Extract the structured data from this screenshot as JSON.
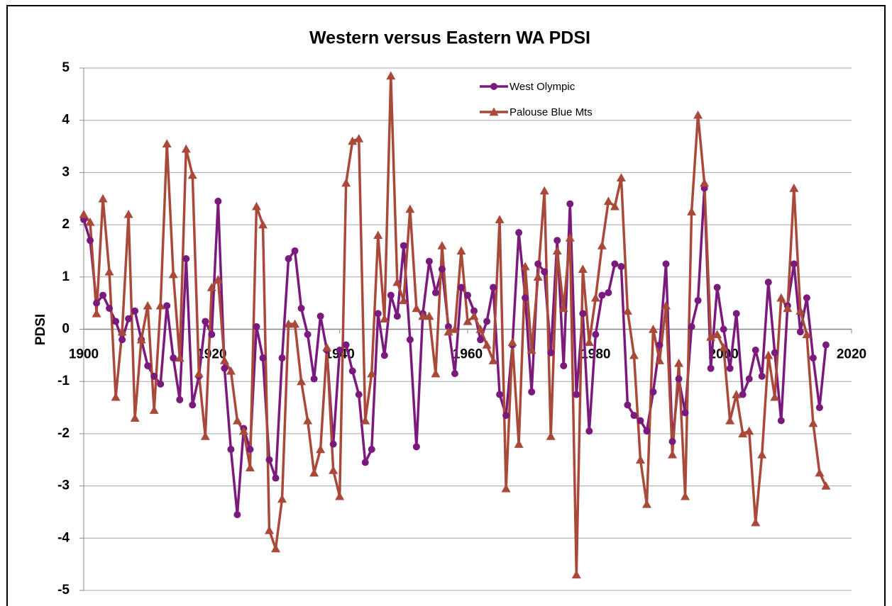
{
  "chart_data": {
    "type": "line",
    "title": "Western versus Eastern WA PDSI",
    "y_label": "PDSI",
    "x": [
      1900,
      1901,
      1902,
      1903,
      1904,
      1905,
      1906,
      1907,
      1908,
      1909,
      1910,
      1911,
      1912,
      1913,
      1914,
      1915,
      1916,
      1917,
      1918,
      1919,
      1920,
      1921,
      1922,
      1923,
      1924,
      1925,
      1926,
      1927,
      1928,
      1929,
      1930,
      1931,
      1932,
      1933,
      1934,
      1935,
      1936,
      1937,
      1938,
      1939,
      1940,
      1941,
      1942,
      1943,
      1944,
      1945,
      1946,
      1947,
      1948,
      1949,
      1950,
      1951,
      1952,
      1953,
      1954,
      1955,
      1956,
      1957,
      1958,
      1959,
      1960,
      1961,
      1962,
      1963,
      1964,
      1965,
      1966,
      1967,
      1968,
      1969,
      1970,
      1971,
      1972,
      1973,
      1974,
      1975,
      1976,
      1977,
      1978,
      1979,
      1980,
      1981,
      1982,
      1983,
      1984,
      1985,
      1986,
      1987,
      1988,
      1989,
      1990,
      1991,
      1992,
      1993,
      1994,
      1995,
      1996,
      1997,
      1998,
      1999,
      2000,
      2001,
      2002,
      2003,
      2004,
      2005,
      2006,
      2007,
      2008,
      2009,
      2010,
      2011,
      2012,
      2013,
      2014,
      2015,
      2016
    ],
    "series": [
      {
        "name": "West Olympic",
        "color": "#7b1a7d",
        "marker": "circle",
        "values": [
          2.1,
          1.7,
          0.5,
          0.65,
          0.4,
          0.15,
          -0.2,
          0.2,
          0.35,
          -0.2,
          -0.7,
          -0.9,
          -1.05,
          0.45,
          -0.55,
          -1.35,
          1.35,
          -1.45,
          -0.9,
          0.15,
          -0.1,
          2.45,
          -0.75,
          -2.3,
          -3.55,
          -1.9,
          -2.3,
          0.05,
          -0.55,
          -2.5,
          -2.85,
          -0.55,
          1.35,
          1.5,
          0.4,
          -0.1,
          -0.95,
          0.25,
          -0.4,
          -2.2,
          -0.4,
          -0.3,
          -0.8,
          -1.25,
          -2.55,
          -2.3,
          0.3,
          -0.5,
          0.65,
          0.25,
          1.6,
          -0.2,
          -2.25,
          0.3,
          1.3,
          0.7,
          1.15,
          0.05,
          -0.85,
          0.8,
          0.65,
          0.35,
          -0.2,
          0.15,
          0.8,
          -1.25,
          -1.65,
          -0.3,
          1.85,
          0.6,
          -1.2,
          1.25,
          1.1,
          -0.45,
          1.7,
          -0.7,
          2.4,
          -1.25,
          0.3,
          -1.95,
          -0.1,
          0.65,
          0.7,
          1.25,
          1.2,
          -1.45,
          -1.65,
          -1.75,
          -1.95,
          -1.2,
          -0.3,
          1.25,
          -2.15,
          -0.95,
          -1.6,
          0.05,
          0.55,
          2.7,
          -0.75,
          0.8,
          0.0,
          -0.75,
          0.3,
          -1.25,
          -0.95,
          -0.4,
          -0.9,
          0.9,
          -0.45,
          -1.75,
          0.45,
          1.25,
          -0.05,
          0.6,
          -0.55,
          -1.5,
          -0.3
        ]
      },
      {
        "name": "Palouse Blue Mts",
        "color": "#a9493a",
        "marker": "triangle",
        "values": [
          2.2,
          2.05,
          0.3,
          2.5,
          1.1,
          -1.3,
          -0.05,
          2.2,
          -1.7,
          -0.2,
          0.45,
          -1.55,
          0.45,
          3.55,
          1.05,
          -0.55,
          3.45,
          2.95,
          -0.85,
          -2.05,
          0.8,
          0.95,
          -0.6,
          -0.8,
          -1.75,
          -1.95,
          -2.65,
          2.35,
          2.0,
          -3.85,
          -4.2,
          -3.25,
          0.1,
          0.1,
          -1.0,
          -1.75,
          -2.75,
          -2.3,
          -0.35,
          -2.7,
          -3.2,
          2.8,
          3.6,
          3.65,
          -1.75,
          -0.85,
          1.8,
          0.2,
          4.85,
          0.9,
          0.55,
          2.3,
          0.4,
          0.25,
          0.25,
          -0.85,
          1.6,
          -0.05,
          0.0,
          1.5,
          0.15,
          0.25,
          0.0,
          -0.3,
          -0.6,
          2.1,
          -3.05,
          -0.25,
          -2.2,
          1.2,
          -0.4,
          1.0,
          2.65,
          -2.05,
          1.5,
          0.4,
          1.75,
          -4.7,
          1.15,
          -0.25,
          0.6,
          1.6,
          2.45,
          2.35,
          2.9,
          0.35,
          -0.5,
          -2.5,
          -3.35,
          0.0,
          -0.6,
          0.45,
          -2.4,
          -0.65,
          -3.2,
          2.25,
          4.1,
          2.8,
          -0.15,
          -0.1,
          -0.35,
          -1.75,
          -1.25,
          -2.0,
          -1.95,
          -3.7,
          -2.4,
          -0.5,
          -1.3,
          0.6,
          0.4,
          2.7,
          0.35,
          -0.1,
          -1.8,
          -2.75,
          -3.0
        ]
      }
    ],
    "xlim": [
      1900,
      2020
    ],
    "xticks": [
      1900,
      1920,
      1940,
      1960,
      1980,
      2000,
      2020
    ],
    "ylim": [
      -5,
      5
    ],
    "yticks": [
      -5,
      -4,
      -3,
      -2,
      -1,
      0,
      1,
      2,
      3,
      4,
      5
    ],
    "grid": true,
    "legend": "top"
  }
}
